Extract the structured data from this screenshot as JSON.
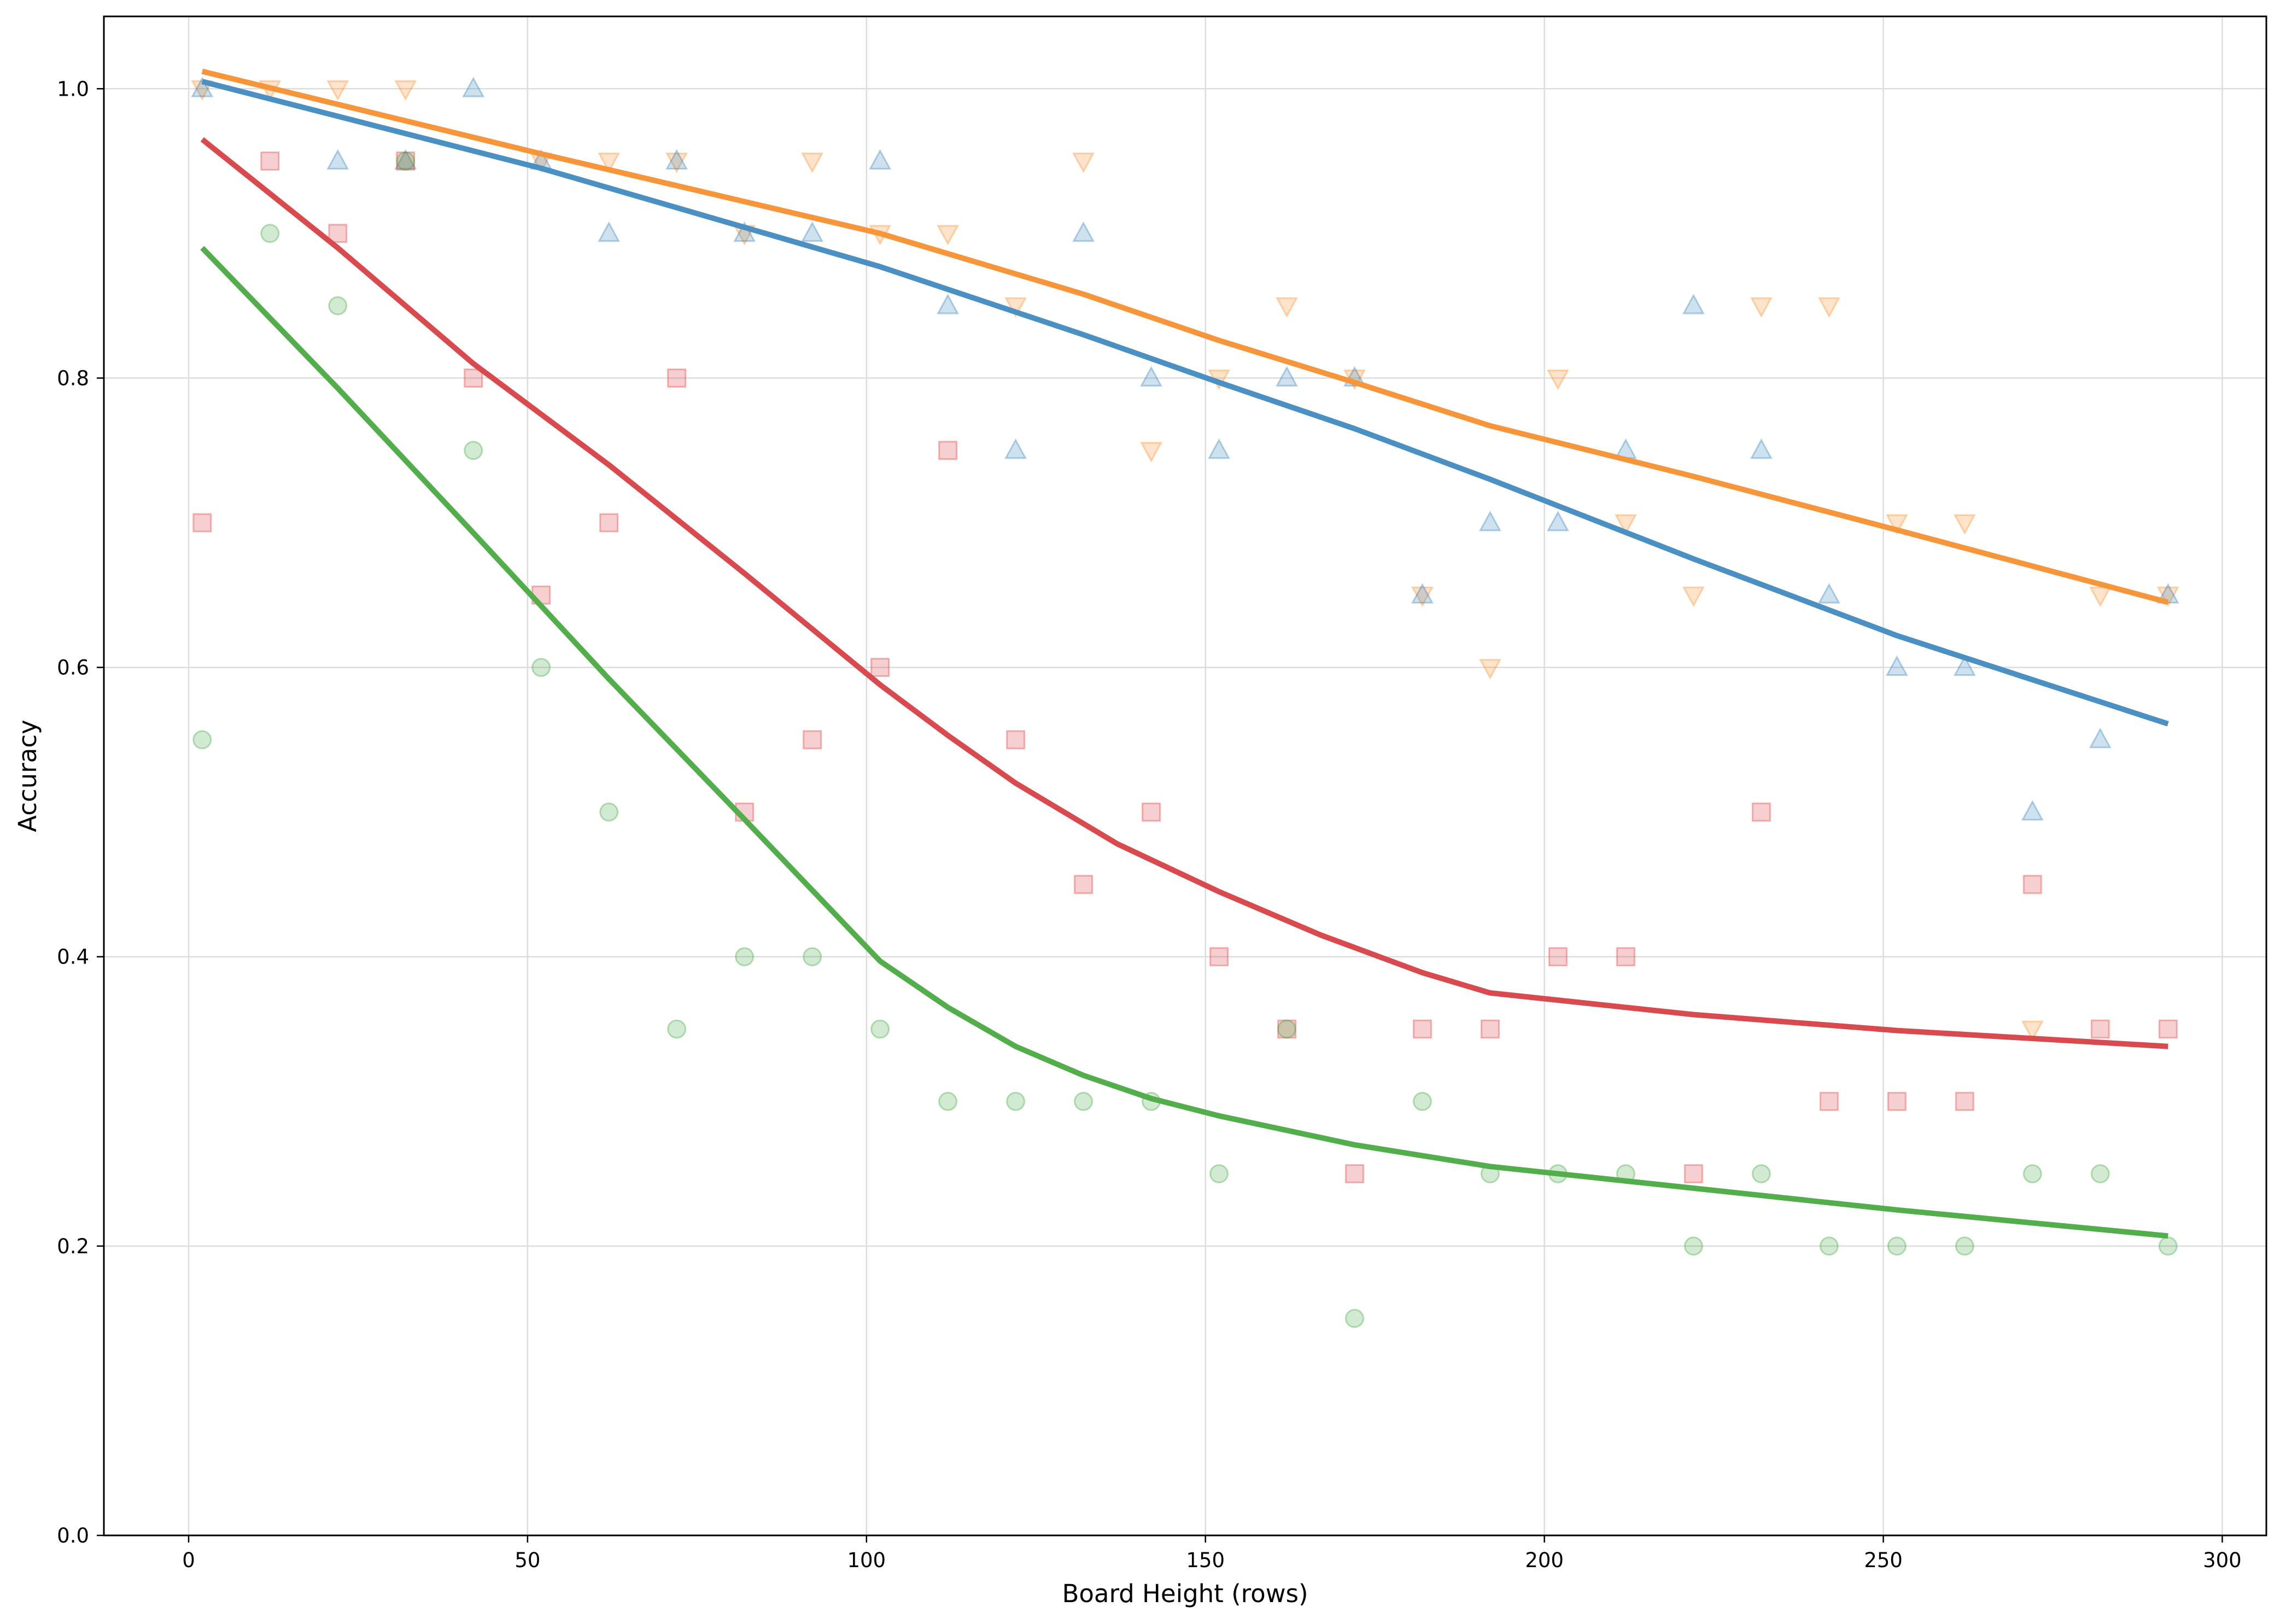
{
  "chart_data": {
    "type": "scatter",
    "title": "",
    "xlabel": "Board Height (rows)",
    "ylabel": "Accuracy",
    "xlim": [
      -12.5,
      306.5
    ],
    "ylim": [
      0.0,
      1.05
    ],
    "xticks": [
      0,
      50,
      100,
      150,
      200,
      250,
      300
    ],
    "yticks": [
      0.0,
      0.2,
      0.4,
      0.6,
      0.8,
      1.0
    ],
    "grid": true,
    "legend": "none",
    "series": [
      {
        "color": "#ff7f0e",
        "trend_color": "#f7953a",
        "marker": "triangle-down",
        "points": [
          [
            2,
            1.0
          ],
          [
            12,
            1.0
          ],
          [
            22,
            1.0
          ],
          [
            32,
            1.0
          ],
          [
            52,
            0.95
          ],
          [
            62,
            0.95
          ],
          [
            72,
            0.95
          ],
          [
            82,
            0.9
          ],
          [
            92,
            0.95
          ],
          [
            102,
            0.9
          ],
          [
            112,
            0.9
          ],
          [
            122,
            0.85
          ],
          [
            132,
            0.95
          ],
          [
            142,
            0.75
          ],
          [
            152,
            0.8
          ],
          [
            162,
            0.85
          ],
          [
            172,
            0.8
          ],
          [
            182,
            0.65
          ],
          [
            192,
            0.6
          ],
          [
            202,
            0.8
          ],
          [
            212,
            0.7
          ],
          [
            222,
            0.65
          ],
          [
            232,
            0.85
          ],
          [
            242,
            0.85
          ],
          [
            252,
            0.7
          ],
          [
            262,
            0.7
          ],
          [
            272,
            0.35
          ],
          [
            282,
            0.65
          ],
          [
            292,
            0.65
          ]
        ],
        "trend": [
          [
            2,
            1.012
          ],
          [
            52,
            0.955
          ],
          [
            102,
            0.9
          ],
          [
            132,
            0.858
          ],
          [
            152,
            0.826
          ],
          [
            172,
            0.797
          ],
          [
            192,
            0.767
          ],
          [
            222,
            0.732
          ],
          [
            252,
            0.695
          ],
          [
            292,
            0.645
          ]
        ]
      },
      {
        "color": "#1f77b4",
        "trend_color": "#4a90c2",
        "marker": "triangle-up",
        "points": [
          [
            2,
            1.0
          ],
          [
            22,
            0.95
          ],
          [
            32,
            0.95
          ],
          [
            42,
            1.0
          ],
          [
            52,
            0.95
          ],
          [
            62,
            0.9
          ],
          [
            72,
            0.95
          ],
          [
            82,
            0.9
          ],
          [
            92,
            0.9
          ],
          [
            102,
            0.95
          ],
          [
            112,
            0.85
          ],
          [
            122,
            0.75
          ],
          [
            132,
            0.9
          ],
          [
            142,
            0.8
          ],
          [
            152,
            0.75
          ],
          [
            162,
            0.8
          ],
          [
            172,
            0.8
          ],
          [
            182,
            0.65
          ],
          [
            192,
            0.7
          ],
          [
            202,
            0.7
          ],
          [
            212,
            0.75
          ],
          [
            222,
            0.85
          ],
          [
            232,
            0.75
          ],
          [
            242,
            0.65
          ],
          [
            252,
            0.6
          ],
          [
            262,
            0.6
          ],
          [
            272,
            0.5
          ],
          [
            282,
            0.55
          ],
          [
            292,
            0.65
          ]
        ],
        "trend": [
          [
            2,
            1.005
          ],
          [
            52,
            0.945
          ],
          [
            102,
            0.877
          ],
          [
            132,
            0.83
          ],
          [
            152,
            0.797
          ],
          [
            172,
            0.765
          ],
          [
            192,
            0.73
          ],
          [
            222,
            0.675
          ],
          [
            252,
            0.622
          ],
          [
            292,
            0.561
          ]
        ]
      },
      {
        "color": "#d62728",
        "trend_color": "#d84a4d",
        "marker": "square",
        "points": [
          [
            2,
            0.7
          ],
          [
            12,
            0.95
          ],
          [
            22,
            0.9
          ],
          [
            32,
            0.95
          ],
          [
            42,
            0.8
          ],
          [
            52,
            0.65
          ],
          [
            62,
            0.7
          ],
          [
            72,
            0.8
          ],
          [
            82,
            0.5
          ],
          [
            92,
            0.55
          ],
          [
            102,
            0.6
          ],
          [
            112,
            0.75
          ],
          [
            122,
            0.55
          ],
          [
            132,
            0.45
          ],
          [
            142,
            0.5
          ],
          [
            152,
            0.4
          ],
          [
            162,
            0.35
          ],
          [
            172,
            0.25
          ],
          [
            182,
            0.35
          ],
          [
            192,
            0.35
          ],
          [
            202,
            0.4
          ],
          [
            212,
            0.4
          ],
          [
            222,
            0.25
          ],
          [
            232,
            0.5
          ],
          [
            242,
            0.3
          ],
          [
            252,
            0.3
          ],
          [
            262,
            0.3
          ],
          [
            272,
            0.45
          ],
          [
            282,
            0.35
          ],
          [
            292,
            0.35
          ]
        ],
        "trend": [
          [
            2,
            0.965
          ],
          [
            22,
            0.89
          ],
          [
            42,
            0.81
          ],
          [
            62,
            0.74
          ],
          [
            82,
            0.665
          ],
          [
            102,
            0.588
          ],
          [
            112,
            0.553
          ],
          [
            122,
            0.52
          ],
          [
            137,
            0.478
          ],
          [
            152,
            0.445
          ],
          [
            167,
            0.415
          ],
          [
            182,
            0.389
          ],
          [
            192,
            0.375
          ],
          [
            222,
            0.36
          ],
          [
            252,
            0.349
          ],
          [
            292,
            0.338
          ]
        ]
      },
      {
        "color": "#2ca02c",
        "trend_color": "#52ae4b",
        "marker": "circle",
        "points": [
          [
            2,
            0.55
          ],
          [
            12,
            0.9
          ],
          [
            22,
            0.85
          ],
          [
            32,
            0.95
          ],
          [
            42,
            0.75
          ],
          [
            52,
            0.6
          ],
          [
            62,
            0.5
          ],
          [
            72,
            0.35
          ],
          [
            82,
            0.4
          ],
          [
            92,
            0.4
          ],
          [
            102,
            0.35
          ],
          [
            112,
            0.3
          ],
          [
            122,
            0.3
          ],
          [
            132,
            0.3
          ],
          [
            142,
            0.3
          ],
          [
            152,
            0.25
          ],
          [
            162,
            0.35
          ],
          [
            172,
            0.15
          ],
          [
            182,
            0.3
          ],
          [
            192,
            0.25
          ],
          [
            202,
            0.25
          ],
          [
            212,
            0.25
          ],
          [
            222,
            0.2
          ],
          [
            232,
            0.25
          ],
          [
            242,
            0.2
          ],
          [
            252,
            0.2
          ],
          [
            262,
            0.2
          ],
          [
            272,
            0.25
          ],
          [
            282,
            0.25
          ],
          [
            292,
            0.2
          ]
        ],
        "trend": [
          [
            2,
            0.89
          ],
          [
            22,
            0.793
          ],
          [
            42,
            0.693
          ],
          [
            62,
            0.592
          ],
          [
            82,
            0.495
          ],
          [
            102,
            0.397
          ],
          [
            112,
            0.365
          ],
          [
            122,
            0.338
          ],
          [
            132,
            0.318
          ],
          [
            142,
            0.302
          ],
          [
            152,
            0.29
          ],
          [
            172,
            0.27
          ],
          [
            192,
            0.255
          ],
          [
            222,
            0.24
          ],
          [
            252,
            0.225
          ],
          [
            292,
            0.207
          ]
        ]
      }
    ]
  }
}
